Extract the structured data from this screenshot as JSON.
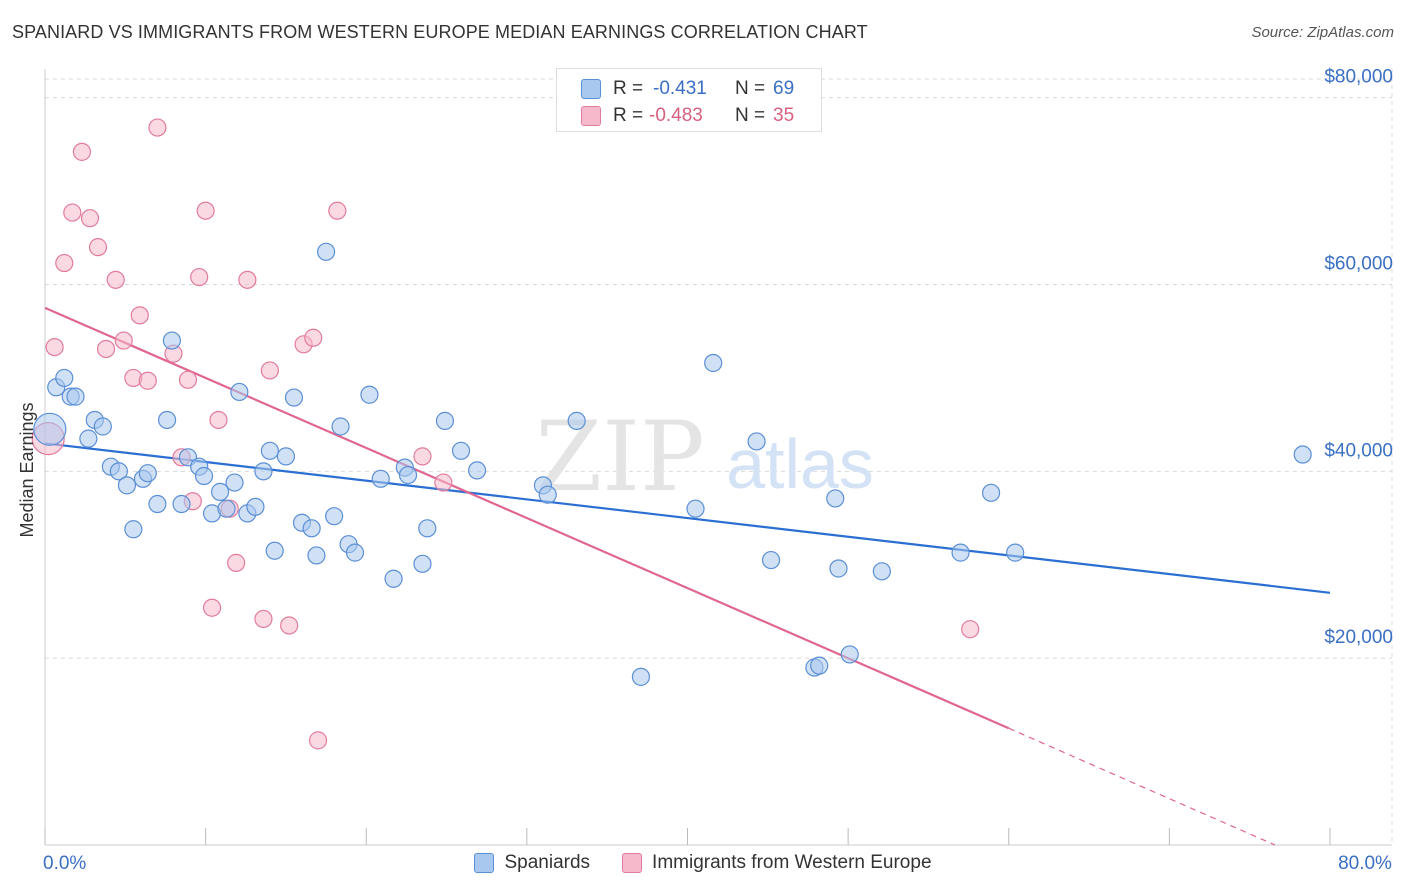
{
  "title": "SPANIARD VS IMMIGRANTS FROM WESTERN EUROPE MEDIAN EARNINGS CORRELATION CHART",
  "source": "Source: ZipAtlas.com",
  "watermark": {
    "zip": "ZIP",
    "atlas": "atlas"
  },
  "colors": {
    "blue_fill": "#a9c8ef",
    "blue_stroke": "#5b8fd6",
    "blue_line": "#2b6fd2",
    "pink_fill": "#f6b9cb",
    "pink_stroke": "#e27c9d",
    "pink_line": "#e0668f",
    "axis_label": "#3a6fc4",
    "grid": "#d9d9d9"
  },
  "stats": {
    "blue": {
      "r_label": "R =",
      "r_value": "-0.431",
      "n_label": "N =",
      "n_value": "69"
    },
    "pink": {
      "r_label": "R =",
      "r_value": "-0.483",
      "n_label": "N =",
      "n_value": "35"
    }
  },
  "chart_data": {
    "type": "scatter",
    "title": "SPANIARD VS IMMIGRANTS FROM WESTERN EUROPE MEDIAN EARNINGS CORRELATION CHART",
    "xlabel": "",
    "ylabel": "Median Earnings",
    "xlim": [
      0,
      80
    ],
    "ylim": [
      0,
      82000
    ],
    "x_tick_labels": [
      {
        "value": 0,
        "label": "0.0%"
      },
      {
        "value": 80,
        "label": "80.0%"
      }
    ],
    "y_ticks": [
      {
        "value": 20000,
        "label": "$20,000"
      },
      {
        "value": 40000,
        "label": "$40,000"
      },
      {
        "value": 60000,
        "label": "$60,000"
      },
      {
        "value": 80000,
        "label": "$80,000"
      }
    ],
    "grid": true,
    "legend": "bottom-center",
    "series": [
      {
        "name": "Spaniards",
        "color": "#a9c8ef",
        "trend": {
          "x0": 0,
          "y0": 43000,
          "x1": 80,
          "y1": 27000
        },
        "points": [
          [
            0.3,
            44500,
            "large"
          ],
          [
            0.7,
            49000
          ],
          [
            1.2,
            50000
          ],
          [
            1.6,
            48000
          ],
          [
            1.9,
            48000
          ],
          [
            2.7,
            43500
          ],
          [
            3.1,
            45500
          ],
          [
            3.6,
            44800
          ],
          [
            4.1,
            40500
          ],
          [
            4.6,
            40000
          ],
          [
            5.1,
            38500
          ],
          [
            5.5,
            33800
          ],
          [
            6.1,
            39200
          ],
          [
            6.4,
            39800
          ],
          [
            7.0,
            36500
          ],
          [
            7.6,
            45500
          ],
          [
            7.9,
            54000
          ],
          [
            8.5,
            36500
          ],
          [
            8.9,
            41500
          ],
          [
            9.6,
            40500
          ],
          [
            9.9,
            39500
          ],
          [
            10.4,
            35500
          ],
          [
            10.9,
            37800
          ],
          [
            11.3,
            36000
          ],
          [
            11.8,
            38800
          ],
          [
            12.1,
            48500
          ],
          [
            12.6,
            35500
          ],
          [
            13.1,
            36200
          ],
          [
            13.6,
            40000
          ],
          [
            14.0,
            42200
          ],
          [
            14.3,
            31500
          ],
          [
            15.0,
            41600
          ],
          [
            15.5,
            47900
          ],
          [
            16.0,
            34500
          ],
          [
            16.6,
            33900
          ],
          [
            16.9,
            31000
          ],
          [
            17.5,
            63500
          ],
          [
            18.0,
            35200
          ],
          [
            18.4,
            44800
          ],
          [
            18.9,
            32200
          ],
          [
            19.3,
            31300
          ],
          [
            20.2,
            48200
          ],
          [
            20.9,
            39200
          ],
          [
            21.7,
            28500
          ],
          [
            22.4,
            40400
          ],
          [
            22.6,
            39600
          ],
          [
            23.5,
            30100
          ],
          [
            23.8,
            33900
          ],
          [
            24.9,
            45400
          ],
          [
            25.9,
            42200
          ],
          [
            26.9,
            40100
          ],
          [
            31.0,
            38500
          ],
          [
            31.3,
            37500
          ],
          [
            33.1,
            45400
          ],
          [
            37.1,
            18000
          ],
          [
            40.5,
            36000
          ],
          [
            41.6,
            51600
          ],
          [
            44.3,
            43200
          ],
          [
            45.2,
            30500
          ],
          [
            47.9,
            19000
          ],
          [
            48.2,
            19200
          ],
          [
            49.2,
            37100
          ],
          [
            49.4,
            29600
          ],
          [
            50.1,
            20400
          ],
          [
            52.1,
            29300
          ],
          [
            57.0,
            31300
          ],
          [
            58.9,
            37700
          ],
          [
            60.4,
            31300
          ],
          [
            78.3,
            41800
          ]
        ]
      },
      {
        "name": "Immigrants from Western Europe",
        "color": "#f6b9cb",
        "trend": {
          "x0": 0,
          "y0": 57500,
          "x1": 60,
          "y1": 12500,
          "dashed_to": {
            "x": 80,
            "y": -2500
          }
        },
        "points": [
          [
            0.2,
            43500,
            "large"
          ],
          [
            0.6,
            53300
          ],
          [
            1.2,
            62300
          ],
          [
            1.7,
            67700
          ],
          [
            2.3,
            74200
          ],
          [
            2.8,
            67100
          ],
          [
            3.3,
            64000
          ],
          [
            3.8,
            53100
          ],
          [
            4.4,
            60500
          ],
          [
            4.9,
            54000
          ],
          [
            5.5,
            50000
          ],
          [
            5.9,
            56700
          ],
          [
            6.4,
            49700
          ],
          [
            7.0,
            76800
          ],
          [
            8.0,
            52600
          ],
          [
            8.5,
            41500
          ],
          [
            8.9,
            49800
          ],
          [
            9.2,
            36800
          ],
          [
            9.6,
            60800
          ],
          [
            10.0,
            67900
          ],
          [
            10.4,
            25400
          ],
          [
            10.8,
            45500
          ],
          [
            11.5,
            36000
          ],
          [
            11.9,
            30200
          ],
          [
            12.6,
            60500
          ],
          [
            13.6,
            24200
          ],
          [
            14.0,
            50800
          ],
          [
            15.2,
            23500
          ],
          [
            16.1,
            53600
          ],
          [
            16.7,
            54300
          ],
          [
            17.0,
            11200
          ],
          [
            18.2,
            67900
          ],
          [
            23.5,
            41600
          ],
          [
            24.8,
            38800
          ],
          [
            57.6,
            23100
          ]
        ]
      }
    ]
  },
  "legend_bottom": [
    {
      "label": "Spaniards",
      "color": "#a9c8ef",
      "stroke": "#5b8fd6"
    },
    {
      "label": "Immigrants from Western Europe",
      "color": "#f6b9cb",
      "stroke": "#e27c9d"
    }
  ]
}
